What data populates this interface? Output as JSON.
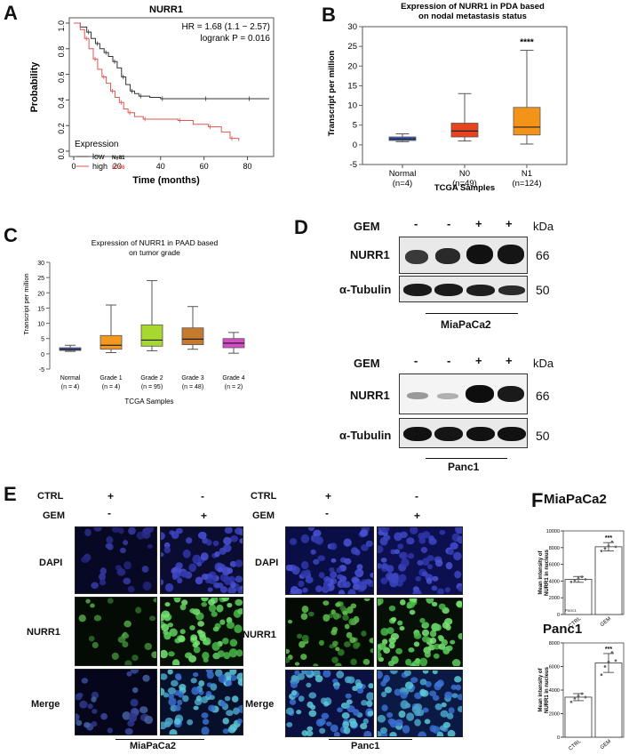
{
  "panels": {
    "A": "A",
    "B": "B",
    "C": "C",
    "D": "D",
    "E": "E",
    "F": "F"
  },
  "chart_data": [
    {
      "id": "A",
      "type": "line",
      "title": "NURR1",
      "xlabel": "Time (months)",
      "ylabel": "Probability",
      "xlim": [
        0,
        90
      ],
      "ylim": [
        0,
        1.0
      ],
      "xticks": [
        "0",
        "20",
        "40",
        "60",
        "80"
      ],
      "yticks": [
        "0.0",
        "0.2",
        "0.4",
        "0.6",
        "0.8",
        "1.0"
      ],
      "annotations": [
        "HR = 1.68 (1.1 − 2.57)",
        "logrank P = 0.016"
      ],
      "legend_title": "Expression",
      "legend_position": "bottom-left",
      "series": [
        {
          "name": "low",
          "n_label": "N=81",
          "color": "#333333",
          "x": [
            0,
            3,
            6,
            8,
            10,
            12,
            14,
            16,
            18,
            20,
            22,
            24,
            26,
            28,
            30,
            35,
            40,
            50,
            60,
            70,
            80,
            90
          ],
          "y": [
            1.0,
            0.97,
            0.93,
            0.88,
            0.84,
            0.8,
            0.77,
            0.74,
            0.7,
            0.65,
            0.58,
            0.52,
            0.47,
            0.45,
            0.43,
            0.42,
            0.41,
            0.41,
            0.41,
            0.41,
            0.41,
            0.41
          ]
        },
        {
          "name": "high",
          "n_label": "N=96",
          "color": "#e0564f",
          "x": [
            0,
            3,
            5,
            7,
            9,
            11,
            13,
            15,
            17,
            19,
            21,
            23,
            25,
            28,
            32,
            40,
            48,
            55,
            62,
            68,
            72,
            76
          ],
          "y": [
            1.0,
            0.95,
            0.88,
            0.8,
            0.72,
            0.64,
            0.58,
            0.53,
            0.47,
            0.42,
            0.38,
            0.33,
            0.3,
            0.27,
            0.25,
            0.25,
            0.24,
            0.21,
            0.19,
            0.15,
            0.1,
            0.08
          ]
        }
      ]
    },
    {
      "id": "B",
      "type": "box",
      "title": "Expression of NURR1 in PDA based on nodal metastasis status",
      "xlabel": "TCGA Samples",
      "ylabel": "Transcript per million",
      "ylim": [
        -5,
        30
      ],
      "yticks": [
        "-5",
        "0",
        "5",
        "10",
        "15",
        "20",
        "25",
        "30"
      ],
      "categories": [
        "Normal",
        "N0",
        "N1"
      ],
      "counts": [
        "(n=4)",
        "(n=49)",
        "(n=124)"
      ],
      "colors": [
        "#3a5fcd",
        "#e8421f",
        "#f39419"
      ],
      "boxes": [
        {
          "min": 0.8,
          "q1": 1.1,
          "median": 1.5,
          "q3": 2.0,
          "max": 2.8
        },
        {
          "min": 1.0,
          "q1": 2.0,
          "median": 3.5,
          "q3": 5.5,
          "max": 13.0
        },
        {
          "min": 0.2,
          "q1": 2.5,
          "median": 4.5,
          "q3": 9.5,
          "max": 24.0
        }
      ],
      "significance": [
        "",
        "",
        "****"
      ]
    },
    {
      "id": "C",
      "type": "box",
      "title": "Expression of NURR1 in PAAD based on tumor grade",
      "xlabel": "TCGA Samples",
      "ylabel": "Transcript per million",
      "ylim": [
        -5,
        30
      ],
      "yticks": [
        "-5",
        "0",
        "5",
        "10",
        "15",
        "20",
        "25",
        "30"
      ],
      "categories": [
        "Normal",
        "Grade 1",
        "Grade 2",
        "Grade 3",
        "Grade 4"
      ],
      "counts": [
        "(n = 4)",
        "(n = 4)",
        "(n = 95)",
        "(n = 48)",
        "(n = 2)"
      ],
      "colors": [
        "#4a6ad8",
        "#f39a1e",
        "#a6d830",
        "#c67a2e",
        "#d84bc7"
      ],
      "boxes": [
        {
          "min": 0.8,
          "q1": 1.1,
          "median": 1.5,
          "q3": 2.0,
          "max": 2.8
        },
        {
          "min": 0.4,
          "q1": 1.5,
          "median": 2.8,
          "q3": 6.0,
          "max": 16.0
        },
        {
          "min": 1.0,
          "q1": 2.5,
          "median": 4.5,
          "q3": 9.5,
          "max": 24.0
        },
        {
          "min": 1.5,
          "q1": 3.0,
          "median": 4.8,
          "q3": 8.5,
          "max": 15.5
        },
        {
          "min": 0.2,
          "q1": 2.0,
          "median": 3.5,
          "q3": 5.0,
          "max": 7.0
        }
      ]
    },
    {
      "id": "F-MiaPaCa2",
      "type": "bar",
      "title": "MiaPaCa2",
      "ylabel": "Mean intensity of NURR1 in nucleus",
      "ylim": [
        0,
        10000
      ],
      "yticks": [
        "0",
        "2000",
        "4000",
        "6000",
        "8000",
        "10000"
      ],
      "categories": [
        "CTRL",
        "GEM"
      ],
      "values": [
        4200,
        8100
      ],
      "errors": [
        350,
        500
      ],
      "points": [
        [
          3900,
          4100,
          4300,
          4500,
          4200
        ],
        [
          7600,
          7900,
          8200,
          8700,
          8100
        ]
      ],
      "significance": [
        "",
        "***"
      ],
      "inset_label": "Panc1"
    },
    {
      "id": "F-Panc1",
      "type": "bar",
      "title": "Panc1",
      "ylabel": "Mean intensity of NURR1 in nucleus",
      "ylim": [
        0,
        8000
      ],
      "yticks": [
        "0",
        "2000",
        "4000",
        "6000",
        "8000"
      ],
      "categories": [
        "CTRL",
        "GEM"
      ],
      "values": [
        3400,
        6300
      ],
      "errors": [
        300,
        800
      ],
      "points": [
        [
          3000,
          3300,
          3500,
          3700,
          3400
        ],
        [
          5300,
          6000,
          6400,
          7200,
          6500
        ]
      ],
      "significance": [
        "",
        "***"
      ]
    }
  ],
  "westerns": {
    "header_gem": "GEM",
    "header_kda": "kDa",
    "signs": [
      "-",
      "-",
      "+",
      "+"
    ],
    "rows": [
      "NURR1",
      "α-Tubulin"
    ],
    "kda": [
      "66",
      "50"
    ],
    "cell_lines": [
      "MiaPaCa2",
      "Panc1"
    ]
  },
  "if_panel": {
    "ctrl": "CTRL",
    "gem": "GEM",
    "ctrl_signs": [
      "+",
      "-"
    ],
    "gem_signs": [
      "-",
      "+"
    ],
    "stains": [
      "DAPI",
      "NURR1",
      "Merge"
    ],
    "cell_lines": [
      "MiaPaCa2",
      "Panc1"
    ]
  }
}
